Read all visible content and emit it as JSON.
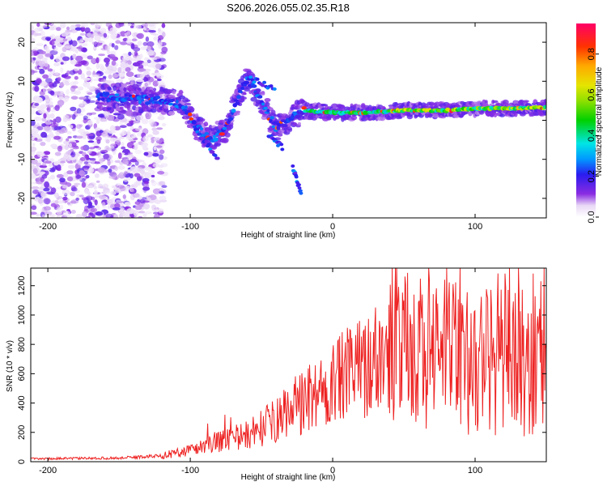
{
  "title": "S206.2026.055.02.35.R18",
  "chart_data": [
    {
      "type": "heatmap",
      "name": "spectrogram",
      "xlabel": "Height of straight line (km)",
      "ylabel": "Frequency (Hz)",
      "xlim": [
        -212,
        150
      ],
      "ylim": [
        -25,
        25
      ],
      "xticks": [
        -200,
        -100,
        0,
        100
      ],
      "yticks": [
        -20,
        -10,
        0,
        10,
        20
      ],
      "ytick_labels": [
        "-20",
        "-10",
        "0",
        "10",
        "20"
      ],
      "xtick_labels": [
        "-200",
        "-100",
        "0",
        "100"
      ],
      "colorbar": {
        "label": "Normalized spectral amplitude",
        "range": [
          0,
          0.95
        ],
        "ticks": [
          0.0,
          0.2,
          0.4,
          0.6,
          0.8
        ],
        "tick_labels": [
          "0.0",
          "0.2",
          "0.4",
          "0.6",
          "0.8"
        ]
      },
      "ridge": [
        {
          "x": -160,
          "y": 6
        },
        {
          "x": -140,
          "y": 5.5
        },
        {
          "x": -120,
          "y": 5
        },
        {
          "x": -105,
          "y": 4
        },
        {
          "x": -95,
          "y": -2
        },
        {
          "x": -85,
          "y": -5
        },
        {
          "x": -75,
          "y": -2
        },
        {
          "x": -60,
          "y": 11
        },
        {
          "x": -50,
          "y": 5
        },
        {
          "x": -40,
          "y": -2
        },
        {
          "x": -20,
          "y": 2.5
        },
        {
          "x": 0,
          "y": 2
        },
        {
          "x": 25,
          "y": 2
        },
        {
          "x": 50,
          "y": 2.5
        },
        {
          "x": 75,
          "y": 2.5
        },
        {
          "x": 100,
          "y": 3
        },
        {
          "x": 125,
          "y": 3
        },
        {
          "x": 150,
          "y": 3.3
        }
      ]
    },
    {
      "type": "line",
      "name": "snr",
      "xlabel": "Height of straight line (km)",
      "ylabel": "SNR (10 * v/v)",
      "xlim": [
        -212,
        150
      ],
      "ylim": [
        0,
        1320
      ],
      "xticks": [
        -200,
        -100,
        0,
        100
      ],
      "xtick_labels": [
        "-200",
        "-100",
        "0",
        "100"
      ],
      "yticks": [
        0,
        200,
        400,
        600,
        800,
        1000,
        1200
      ],
      "ytick_labels": [
        "0",
        "200",
        "400",
        "600",
        "800",
        "1000",
        "1200"
      ],
      "color": "#ee2222",
      "envelope": [
        {
          "x": -212,
          "y": 20
        },
        {
          "x": -150,
          "y": 25
        },
        {
          "x": -120,
          "y": 40
        },
        {
          "x": -100,
          "y": 80
        },
        {
          "x": -80,
          "y": 140
        },
        {
          "x": -60,
          "y": 180
        },
        {
          "x": -40,
          "y": 280
        },
        {
          "x": -20,
          "y": 420
        },
        {
          "x": 0,
          "y": 530
        },
        {
          "x": 20,
          "y": 650
        },
        {
          "x": 40,
          "y": 720
        },
        {
          "x": 60,
          "y": 740
        },
        {
          "x": 80,
          "y": 720
        },
        {
          "x": 100,
          "y": 690
        },
        {
          "x": 120,
          "y": 680
        },
        {
          "x": 150,
          "y": 660
        }
      ]
    }
  ]
}
